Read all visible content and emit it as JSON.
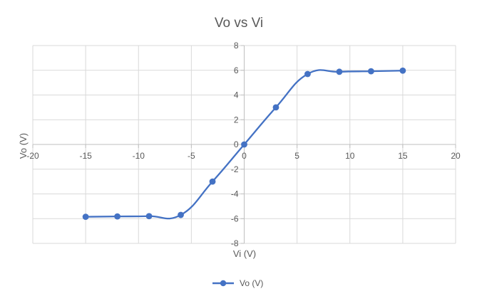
{
  "chart_data": {
    "type": "scatter",
    "title": "Vo vs Vi",
    "xlabel": "Vi (V)",
    "ylabel": "Vo (V)",
    "xlim": [
      -20,
      20
    ],
    "ylim": [
      -8,
      8
    ],
    "x_ticks": [
      -20,
      -15,
      -10,
      -5,
      0,
      5,
      10,
      15,
      20
    ],
    "y_ticks": [
      -8,
      -6,
      -4,
      -2,
      0,
      2,
      4,
      6,
      8
    ],
    "x_tick_labels": [
      "-20",
      "-15",
      "-10",
      "-5",
      "0",
      "5",
      "10",
      "15",
      "20"
    ],
    "y_tick_labels": [
      "-8",
      "-6",
      "-4",
      "-2",
      "0",
      "2",
      "4",
      "6",
      "8"
    ],
    "grid": true,
    "smooth_line": true,
    "legend_position": "bottom",
    "series": [
      {
        "name": "Vo (V)",
        "color": "#4472c4",
        "x": [
          -15,
          -12,
          -9,
          -6,
          -3,
          0,
          3,
          6,
          9,
          12,
          15
        ],
        "y": [
          -5.85,
          -5.82,
          -5.8,
          -5.7,
          -3.0,
          0.0,
          3.0,
          5.7,
          5.88,
          5.92,
          5.97
        ]
      }
    ]
  },
  "colors": {
    "grid": "#d9d9d9",
    "axis": "#bfbfbf",
    "text": "#595959",
    "title": "#595959"
  }
}
